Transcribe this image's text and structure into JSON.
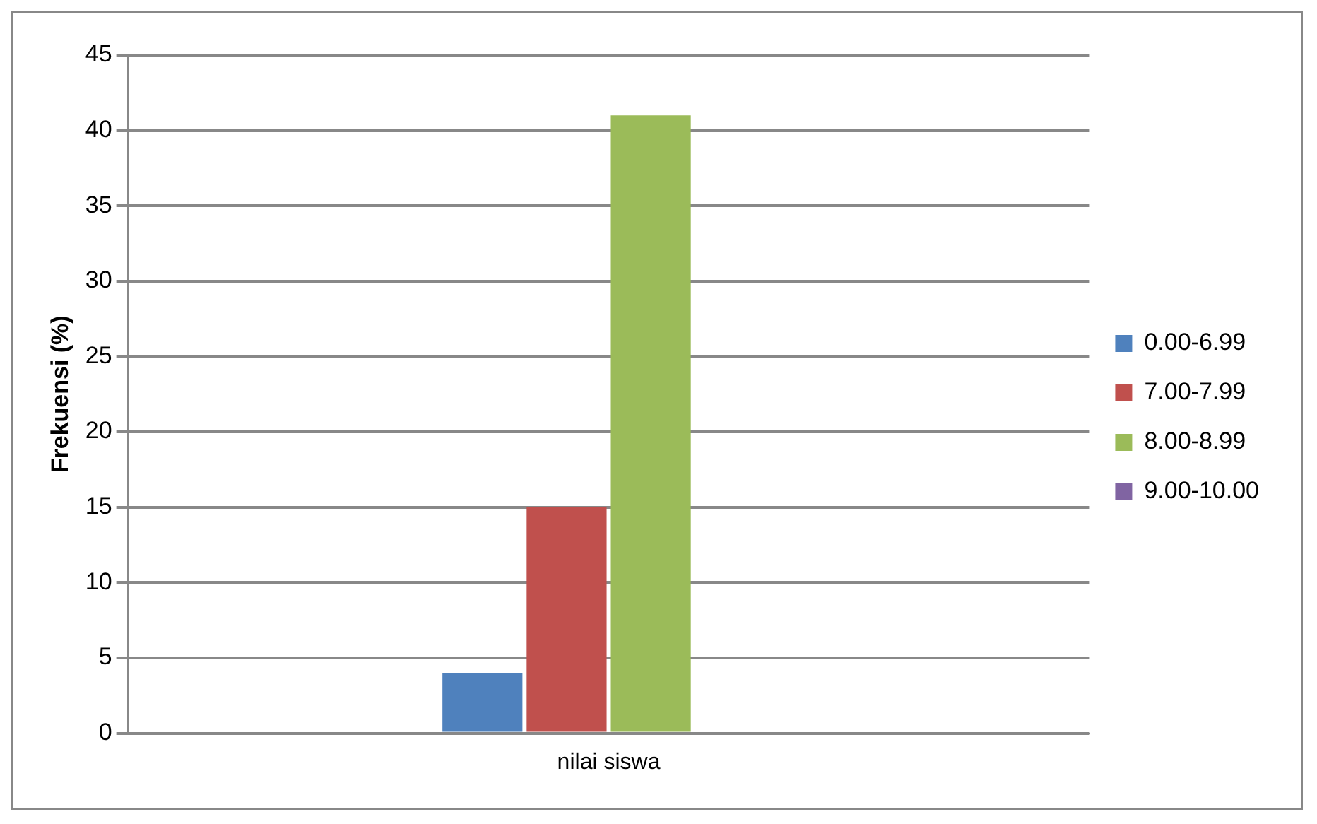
{
  "chart_data": {
    "type": "bar",
    "ylabel": "Frekuensi (%)",
    "categories": [
      "nilai siswa"
    ],
    "series": [
      {
        "name": "0.00-6.99",
        "color": "#4f81bd",
        "values": [
          4
        ]
      },
      {
        "name": "7.00-7.99",
        "color": "#c0504d",
        "values": [
          15
        ]
      },
      {
        "name": "8.00-8.99",
        "color": "#9bbb59",
        "values": [
          41
        ]
      },
      {
        "name": "9.00-10.00",
        "color": "#8064a2",
        "values": [
          0
        ]
      }
    ],
    "ylim": [
      0,
      45
    ],
    "yticks": [
      0,
      5,
      10,
      15,
      20,
      25,
      30,
      35,
      40,
      45
    ],
    "grid": "y",
    "legend": "right"
  }
}
